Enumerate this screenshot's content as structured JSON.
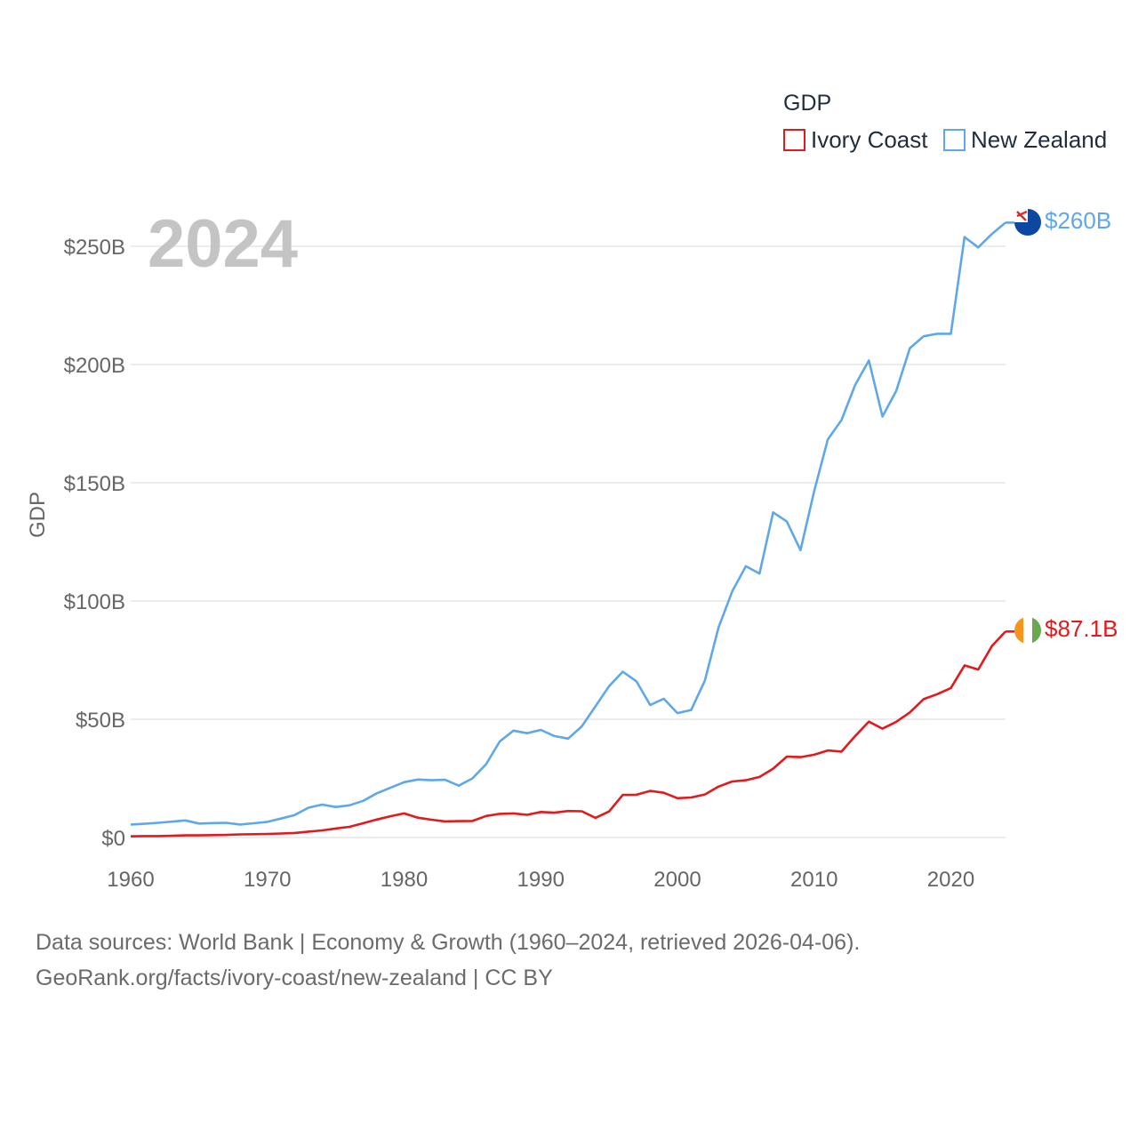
{
  "chart_data": {
    "type": "line",
    "title": "GDP",
    "xlabel": "",
    "ylabel": "GDP",
    "xlim": [
      1960,
      2024
    ],
    "ylim": [
      0,
      260
    ],
    "yunit": "billion USD",
    "x_ticks": [
      1960,
      1970,
      1980,
      1990,
      2000,
      2010,
      2020
    ],
    "x_tick_labels": [
      "1960",
      "1970",
      "1980",
      "1990",
      "2000",
      "2010",
      "2020"
    ],
    "y_ticks": [
      0,
      50,
      100,
      150,
      200,
      250
    ],
    "y_tick_labels": [
      "$0",
      "$50B",
      "$100B",
      "$150B",
      "$200B",
      "$250B"
    ],
    "year_label": "2024",
    "grid": true,
    "legend_position": "top-right",
    "x": [
      1960,
      1961,
      1962,
      1963,
      1964,
      1965,
      1966,
      1967,
      1968,
      1969,
      1970,
      1971,
      1972,
      1973,
      1974,
      1975,
      1976,
      1977,
      1978,
      1979,
      1980,
      1981,
      1982,
      1983,
      1984,
      1985,
      1986,
      1987,
      1988,
      1989,
      1990,
      1991,
      1992,
      1993,
      1994,
      1995,
      1996,
      1997,
      1998,
      1999,
      2000,
      2001,
      2002,
      2003,
      2004,
      2005,
      2006,
      2007,
      2008,
      2009,
      2010,
      2011,
      2012,
      2013,
      2014,
      2015,
      2016,
      2017,
      2018,
      2019,
      2020,
      2021,
      2022,
      2023,
      2024
    ],
    "series": [
      {
        "name": "Ivory Coast",
        "color": "#e31a1c",
        "end_label": "$87.1B",
        "values": [
          0.5,
          0.6,
          0.6,
          0.7,
          0.9,
          0.9,
          1.0,
          1.1,
          1.3,
          1.4,
          1.5,
          1.7,
          1.9,
          2.5,
          3.0,
          3.8,
          4.5,
          6.0,
          7.6,
          9.0,
          10.2,
          8.4,
          7.5,
          6.8,
          6.9,
          7.0,
          9.1,
          10.0,
          10.2,
          9.6,
          10.8,
          10.5,
          11.2,
          11.1,
          8.3,
          11.0,
          18.0,
          18.1,
          19.7,
          18.9,
          16.6,
          16.9,
          18.2,
          21.5,
          23.7,
          24.2,
          25.6,
          29.1,
          34.2,
          34.0,
          35.0,
          36.8,
          36.3,
          42.9,
          49.0,
          46.0,
          48.9,
          52.9,
          58.5,
          60.6,
          63.2,
          72.8,
          71.0,
          80.9,
          87.1
        ]
      },
      {
        "name": "New Zealand",
        "color": "#5fa8e8",
        "end_label": "$260B",
        "values": [
          5.5,
          5.8,
          6.2,
          6.7,
          7.2,
          5.9,
          6.1,
          6.2,
          5.5,
          6.0,
          6.6,
          8.0,
          9.5,
          12.6,
          13.9,
          12.9,
          13.6,
          15.5,
          18.7,
          21.0,
          23.4,
          24.5,
          24.2,
          24.4,
          21.9,
          25.0,
          31.0,
          40.6,
          45.2,
          44.1,
          45.5,
          42.9,
          41.8,
          47.0,
          55.5,
          64.0,
          70.1,
          66.0,
          56.0,
          58.7,
          52.6,
          53.9,
          66.3,
          88.7,
          104.0,
          114.7,
          111.6,
          137.5,
          133.6,
          121.5,
          146.5,
          168.3,
          176.5,
          191.4,
          201.7,
          178.0,
          188.8,
          206.9,
          211.9,
          213.0,
          213.0,
          253.9,
          249.5,
          255.2,
          260.0
        ]
      }
    ]
  },
  "legend": {
    "title": "GDP",
    "items": [
      "Ivory Coast",
      "New Zealand"
    ]
  },
  "source": {
    "line1": "Data sources: World Bank | Economy & Growth (1960–2024, retrieved 2026-04-06).",
    "line2": "GeoRank.org/facts/ivory-coast/new-zealand | CC BY"
  }
}
